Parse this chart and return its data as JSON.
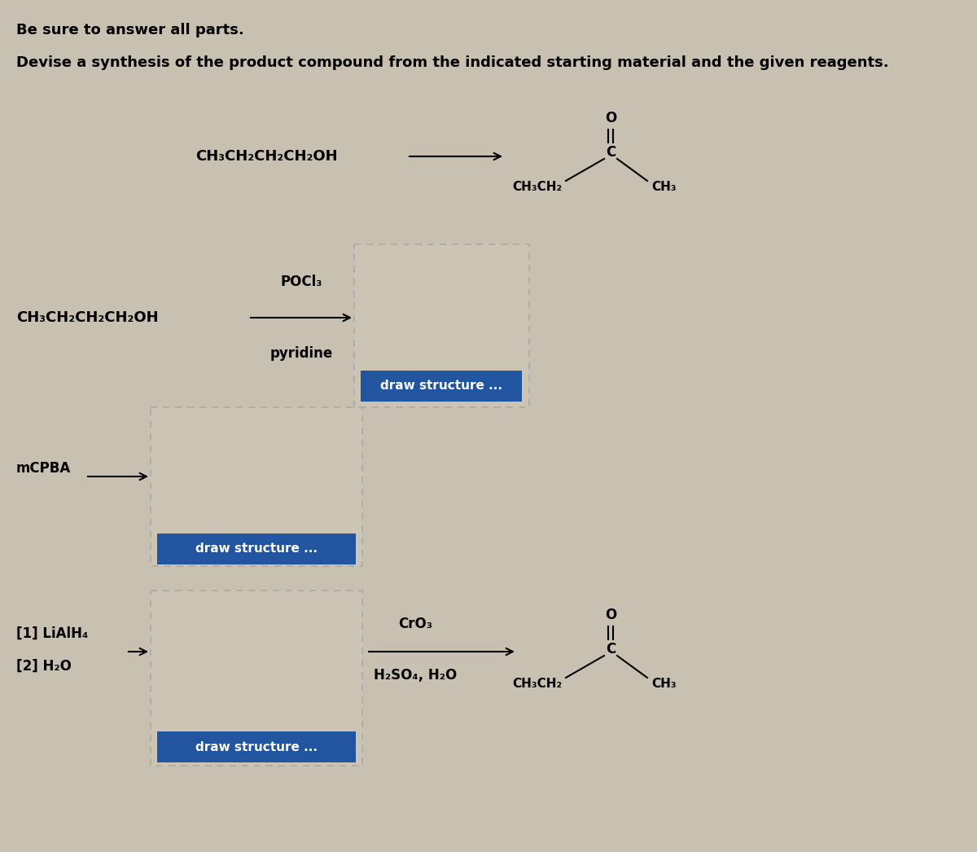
{
  "bg_color": "#c8c0b0",
  "title1": "Be sure to answer all parts.",
  "title2": "Devise a synthesis of the product compound from the indicated starting material and the given reagents.",
  "starting_material": "CH₃CH₂CH₂CH₂OH",
  "reagent1_top": "POCl₃",
  "reagent1_bottom": "pyridine",
  "reagent2_top": "mCPBA",
  "reagent3_top": "[1] LiAlH₄",
  "reagent3_bottom": "[2] H₂O",
  "reagent4_top": "CrO₃",
  "reagent4_bottom": "H₂SO₄, H₂O",
  "draw_structure_color": "#2255a0",
  "draw_structure_text": "draw structure ...",
  "draw_structure_text_color": "#ffffff"
}
